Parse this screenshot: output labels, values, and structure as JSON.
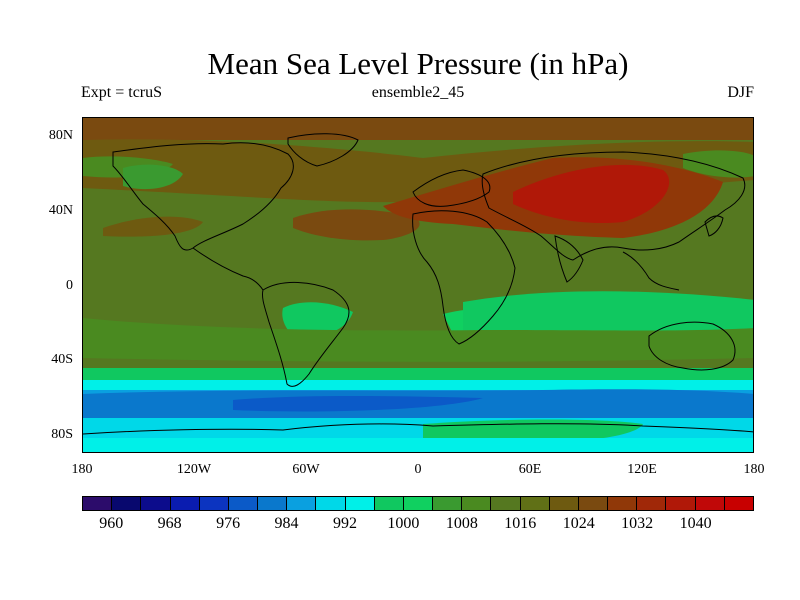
{
  "title": "Mean Sea Level Pressure (in hPa)",
  "left_string": "Expt = tcruS",
  "center_string": "ensemble2_45",
  "right_string": "DJF",
  "lat_labels": [
    "80N",
    "40N",
    "0",
    "40S",
    "80S"
  ],
  "lon_labels": [
    "180",
    "120W",
    "60W",
    "0",
    "60E",
    "120E",
    "180"
  ],
  "colorbar": {
    "labels": [
      "960",
      "968",
      "976",
      "984",
      "992",
      "1000",
      "1008",
      "1016",
      "1024",
      "1032",
      "1040"
    ],
    "colors": [
      "#2c0c6b",
      "#08086e",
      "#0c0c8c",
      "#0a1cb0",
      "#0c34c0",
      "#0b5ac8",
      "#0a78cc",
      "#0aa0e0",
      "#00d8e8",
      "#00f0e8",
      "#10c860",
      "#10d060",
      "#3a9a30",
      "#4a8a20",
      "#557820",
      "#607016",
      "#6e5a10",
      "#7a4a10",
      "#903808",
      "#a02808",
      "#b01808",
      "#c00808",
      "#c80000"
    ]
  },
  "map_style": {
    "ocean_mid": "#557820",
    "land_outline": "#000000"
  }
}
